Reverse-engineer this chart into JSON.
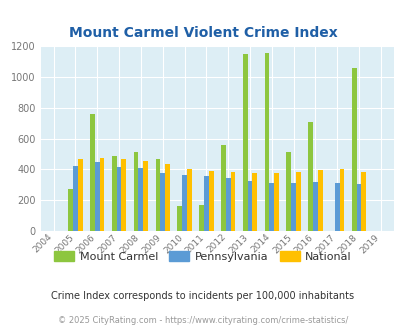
{
  "title": "Mount Carmel Violent Crime Index",
  "years": [
    2004,
    2005,
    2006,
    2007,
    2008,
    2009,
    2010,
    2011,
    2012,
    2013,
    2014,
    2015,
    2016,
    2017,
    2018,
    2019
  ],
  "mount_carmel": [
    0,
    275,
    760,
    490,
    515,
    465,
    160,
    170,
    560,
    1150,
    1155,
    510,
    705,
    0,
    1060,
    0
  ],
  "pennsylvania": [
    0,
    425,
    445,
    415,
    410,
    375,
    365,
    355,
    345,
    325,
    310,
    310,
    315,
    310,
    305,
    0
  ],
  "national": [
    0,
    470,
    475,
    465,
    455,
    435,
    405,
    390,
    385,
    375,
    375,
    385,
    395,
    400,
    380,
    0
  ],
  "color_mc": "#8dc63f",
  "color_pa": "#5b9bd5",
  "color_nat": "#ffc000",
  "bg_color": "#ddeef5",
  "title_color": "#1f5fa6",
  "ylim": [
    0,
    1200
  ],
  "yticks": [
    0,
    200,
    400,
    600,
    800,
    1000,
    1200
  ],
  "subtitle": "Crime Index corresponds to incidents per 100,000 inhabitants",
  "footer": "© 2025 CityRating.com - https://www.cityrating.com/crime-statistics/",
  "legend_labels": [
    "Mount Carmel",
    "Pennsylvania",
    "National"
  ]
}
